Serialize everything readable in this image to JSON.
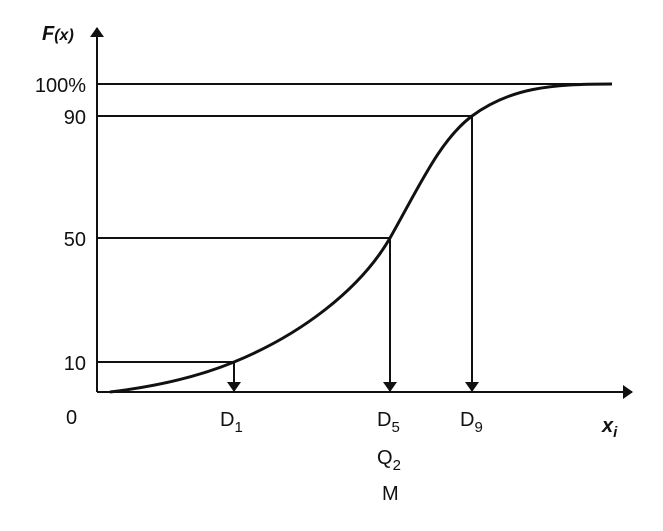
{
  "y_axis": {
    "label": {
      "base": "F",
      "rest": "(x)"
    },
    "ticks": [
      "100%",
      "90",
      "50",
      "10"
    ]
  },
  "origin": "0",
  "x_axis": {
    "label": {
      "base": "x",
      "sub": "i"
    }
  },
  "deciles": [
    {
      "base": "D",
      "sub": "1"
    },
    {
      "base": "D",
      "sub": "5"
    },
    {
      "base": "D",
      "sub": "9"
    }
  ],
  "median_labels": [
    {
      "base": "Q",
      "sub": "2"
    },
    {
      "base": "M"
    }
  ]
}
